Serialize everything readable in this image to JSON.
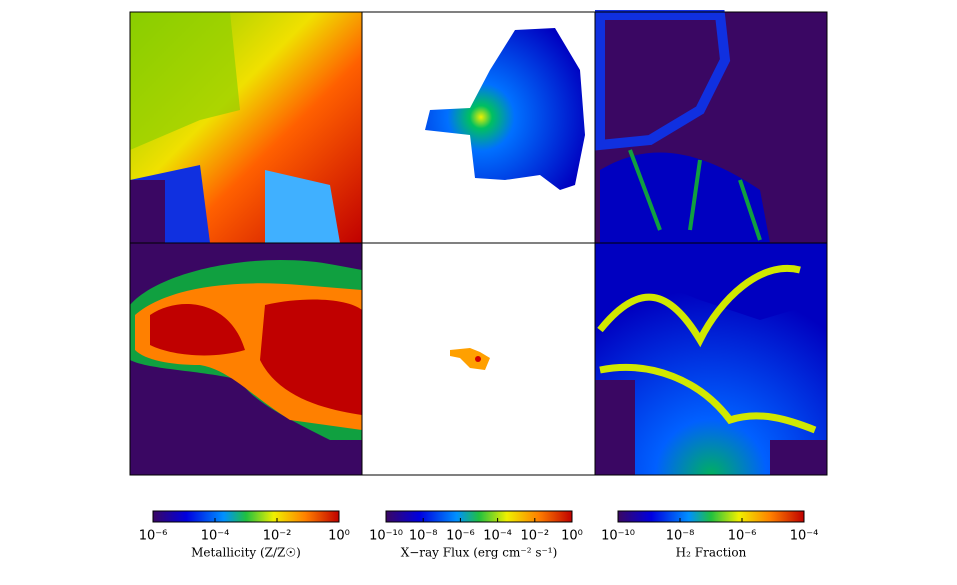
{
  "chart_data": [
    {
      "type": "colorbar",
      "label": "Metallicity (Z/Z☉)",
      "log": true,
      "xlim": [
        1e-06,
        1
      ],
      "xticks": [
        {
          "value": 1e-06,
          "label": "10⁻⁶"
        },
        {
          "value": 0.0001,
          "label": "10⁻⁴"
        },
        {
          "value": 0.01,
          "label": "10⁻²"
        },
        {
          "value": 1,
          "label": "10⁰"
        }
      ]
    },
    {
      "type": "colorbar",
      "label": "X−ray Flux (erg cm⁻² s⁻¹)",
      "log": true,
      "xlim": [
        1e-10,
        1
      ],
      "xticks": [
        {
          "value": 1e-10,
          "label": "10⁻¹⁰"
        },
        {
          "value": 1e-08,
          "label": "10⁻⁸"
        },
        {
          "value": 1e-06,
          "label": "10⁻⁶"
        },
        {
          "value": 0.0001,
          "label": "10⁻⁴"
        },
        {
          "value": 0.01,
          "label": "10⁻²"
        },
        {
          "value": 1,
          "label": "10⁰"
        }
      ]
    },
    {
      "type": "colorbar",
      "label": "H₂ Fraction",
      "log": true,
      "xlim": [
        1e-10,
        0.0001
      ],
      "xticks": [
        {
          "value": 1e-10,
          "label": "10⁻¹⁰"
        },
        {
          "value": 1e-08,
          "label": "10⁻⁸"
        },
        {
          "value": 1e-06,
          "label": "10⁻⁶"
        },
        {
          "value": 0.0001,
          "label": "10⁻⁴"
        }
      ]
    }
  ]
}
